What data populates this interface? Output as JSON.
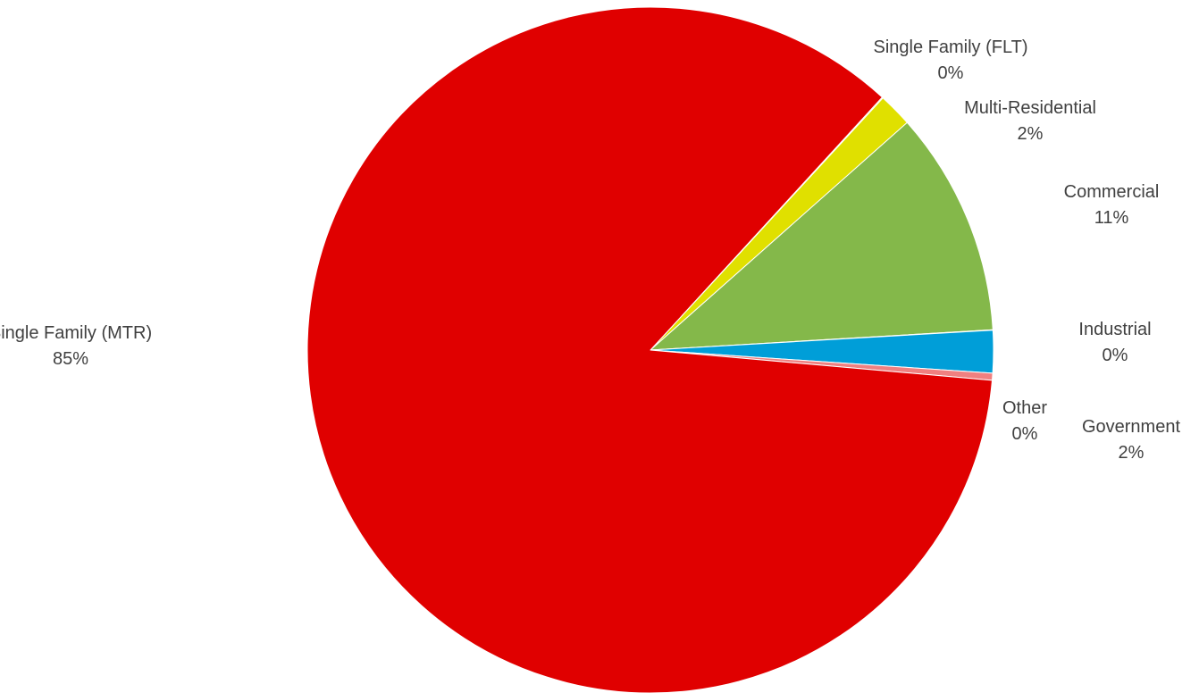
{
  "chart_data": {
    "type": "pie",
    "title": "",
    "slices": [
      {
        "label": "Single Family (MTR)",
        "pct_label": "85%",
        "value": 85.4,
        "color": "#e00000"
      },
      {
        "label": "Single Family (FLT)",
        "pct_label": "0%",
        "value": 0.05,
        "color": "#e8c83a"
      },
      {
        "label": "Multi-Residential",
        "pct_label": "2%",
        "value": 1.6,
        "color": "#e0e000"
      },
      {
        "label": "Commercial",
        "pct_label": "11%",
        "value": 10.6,
        "color": "#84b84a"
      },
      {
        "label": "Industrial",
        "pct_label": "0%",
        "value": 0.02,
        "color": "#4472c4"
      },
      {
        "label": "Government",
        "pct_label": "2%",
        "value": 2.0,
        "color": "#009ed8"
      },
      {
        "label": "Other",
        "pct_label": "0%",
        "value": 0.33,
        "color": "#f08080"
      }
    ],
    "start_slice": "Single Family (FLT)",
    "start_angle_deg": 42.5,
    "direction": "clockwise",
    "legend": "none",
    "data_labels": "category name and percentage"
  }
}
